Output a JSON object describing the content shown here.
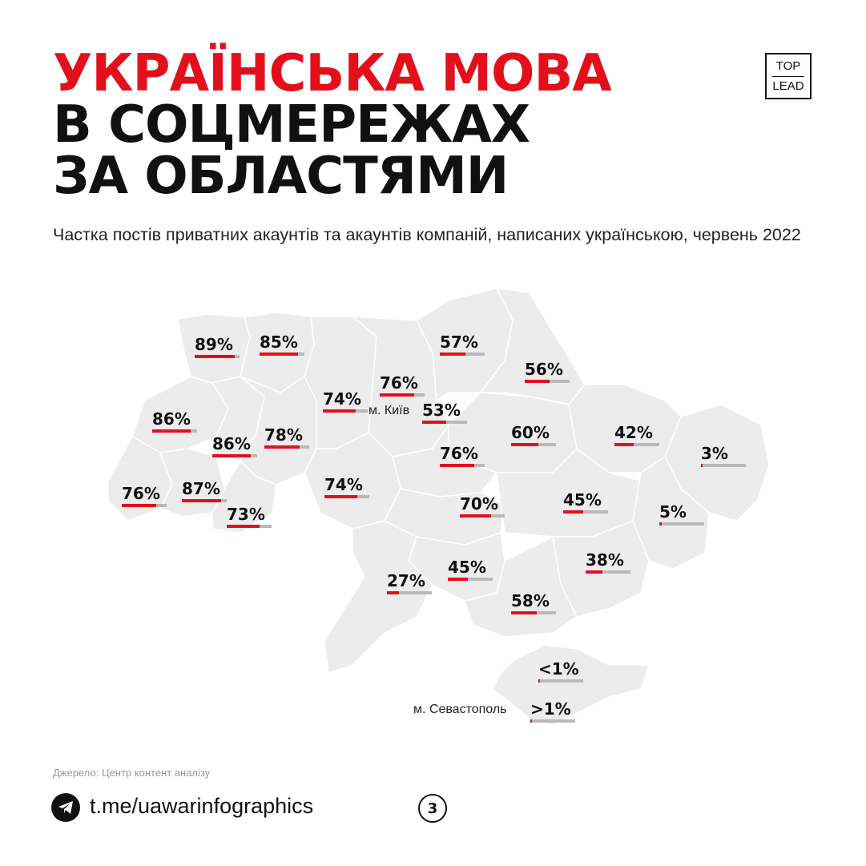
{
  "title": {
    "line1": "УКРАЇНСЬКА МОВА",
    "line2": "В СОЦМЕРЕЖАХ",
    "line3": "ЗА ОБЛАСТЯМИ"
  },
  "logo": {
    "top": "TOP",
    "bottom": "LEAD"
  },
  "subtitle": "Частка постів приватних акаунтів та акаунтів компаній, написаних українською, червень 2022",
  "map": {
    "kyiv_city_label": "м. Київ",
    "sevastopol_label": "м. Севастополь",
    "regions": [
      {
        "key": "volyn",
        "label": "89%",
        "share": 0.89
      },
      {
        "key": "rivne",
        "label": "85%",
        "share": 0.85
      },
      {
        "key": "lviv",
        "label": "86%",
        "share": 0.86
      },
      {
        "key": "ternopil",
        "label": "86%",
        "share": 0.86
      },
      {
        "key": "khmelnytskyi",
        "label": "78%",
        "share": 0.78
      },
      {
        "key": "zakarpattia",
        "label": "76%",
        "share": 0.76
      },
      {
        "key": "ivano-frankivsk",
        "label": "87%",
        "share": 0.87
      },
      {
        "key": "chernivtsi",
        "label": "73%",
        "share": 0.73
      },
      {
        "key": "zhytomyr",
        "label": "74%",
        "share": 0.74
      },
      {
        "key": "kyiv-oblast",
        "label": "76%",
        "share": 0.76
      },
      {
        "key": "kyiv-city",
        "label": "53%",
        "share": 0.53
      },
      {
        "key": "chernihiv",
        "label": "57%",
        "share": 0.57
      },
      {
        "key": "sumy",
        "label": "56%",
        "share": 0.56
      },
      {
        "key": "poltava",
        "label": "60%",
        "share": 0.6
      },
      {
        "key": "kharkiv",
        "label": "42%",
        "share": 0.42
      },
      {
        "key": "luhansk",
        "label": "3%",
        "share": 0.03
      },
      {
        "key": "cherkasy",
        "label": "76%",
        "share": 0.76
      },
      {
        "key": "vinnytsia",
        "label": "74%",
        "share": 0.74
      },
      {
        "key": "kirovohrad",
        "label": "70%",
        "share": 0.7
      },
      {
        "key": "dnipropetrovsk",
        "label": "45%",
        "share": 0.45
      },
      {
        "key": "donetsk",
        "label": "5%",
        "share": 0.05
      },
      {
        "key": "zaporizhzhia",
        "label": "38%",
        "share": 0.38
      },
      {
        "key": "mykolaiv",
        "label": "45%",
        "share": 0.45
      },
      {
        "key": "odesa",
        "label": "27%",
        "share": 0.27
      },
      {
        "key": "kherson",
        "label": "58%",
        "share": 0.58
      },
      {
        "key": "crimea",
        "label": "<1%",
        "share": 0.01
      },
      {
        "key": "sevastopol",
        "label": ">1%",
        "share": 0.01
      }
    ]
  },
  "source": "Джерело: Центр контент аналізу",
  "footer": {
    "link": "t.me/uawarinfographics",
    "page_number": "3"
  },
  "colors": {
    "accent": "#e3101c",
    "text": "#111111",
    "map_fill": "#ececec",
    "bar_track": "#b9b9b9"
  },
  "icons": {
    "telegram": "telegram-icon"
  }
}
